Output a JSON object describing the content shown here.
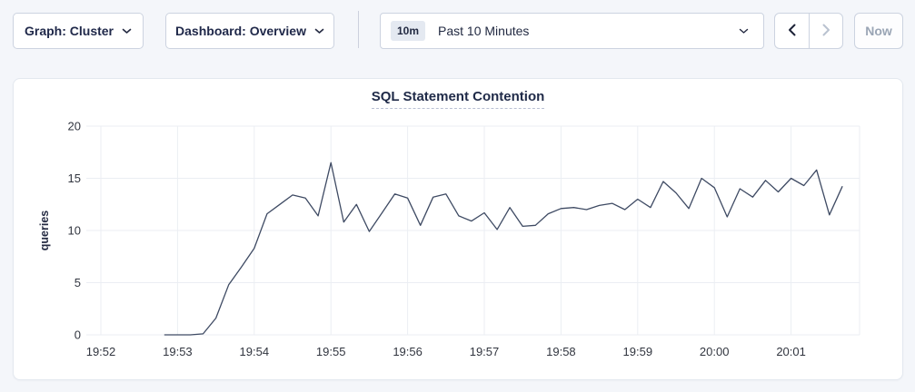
{
  "toolbar": {
    "graph_dropdown_label": "Graph: Cluster",
    "dashboard_dropdown_label": "Dashboard: Overview",
    "time_window_badge": "10m",
    "time_window_label": "Past 10 Minutes",
    "now_button_label": "Now"
  },
  "chart_data": {
    "type": "line",
    "title": "SQL Statement Contention",
    "xlabel": "",
    "ylabel": "queries",
    "ylim": [
      0,
      20
    ],
    "yticks": [
      0,
      5,
      10,
      15,
      20
    ],
    "xtick_labels": [
      "19:52",
      "19:53",
      "19:54",
      "19:55",
      "19:56",
      "19:57",
      "19:58",
      "19:59",
      "20:00",
      "20:01"
    ],
    "x_start": "19:52:50",
    "x_step_seconds": 10,
    "grid": true,
    "legend_position": "none",
    "line_color": "#3e4a63",
    "series": [
      {
        "name": "queries",
        "values": [
          0,
          0,
          0,
          0.1,
          1.6,
          4.8,
          6.5,
          8.3,
          11.6,
          12.5,
          13.4,
          13.1,
          11.4,
          16.5,
          10.8,
          12.5,
          9.9,
          11.7,
          13.5,
          13.1,
          10.5,
          13.2,
          13.5,
          11.4,
          10.9,
          11.7,
          10.1,
          12.2,
          10.4,
          10.5,
          11.6,
          12.1,
          12.2,
          12.0,
          12.4,
          12.6,
          12.0,
          13.0,
          12.2,
          14.7,
          13.6,
          12.1,
          15.0,
          14.1,
          11.3,
          14.0,
          13.2,
          14.8,
          13.7,
          15.0,
          14.3,
          15.8,
          11.5,
          14.2
        ]
      }
    ]
  },
  "colors": {
    "page_bg": "#f4f6fa",
    "card_bg": "#ffffff",
    "control_border": "#ccd3e0",
    "accent_text": "#20294a",
    "disabled_text": "#9aa5b5",
    "grid_line": "#ebeef3",
    "line": "#3e4a63"
  }
}
